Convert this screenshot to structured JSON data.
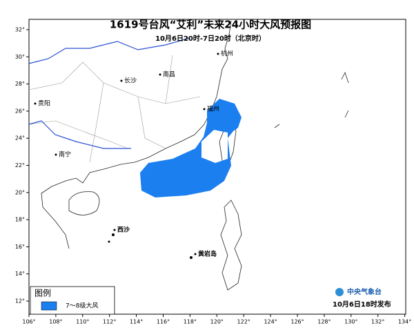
{
  "header": {
    "title": "1619号台风“艾利”未来24小时大风预报图",
    "subtitle": "10月6日20时-7日20时（北京时）"
  },
  "map": {
    "lon_labels": [
      "106°",
      "108°",
      "110°",
      "112°",
      "114°",
      "116°",
      "118°",
      "120°",
      "122°",
      "124°",
      "126°",
      "128°",
      "130°",
      "132°",
      "134°"
    ],
    "lat_labels": [
      "32°",
      "30°",
      "28°",
      "26°",
      "24°",
      "22°",
      "20°",
      "18°",
      "16°",
      "14°",
      "12°"
    ],
    "places": [
      {
        "name": "杭州"
      },
      {
        "name": "南昌"
      },
      {
        "name": "长沙"
      },
      {
        "name": "福州"
      },
      {
        "name": "贵阳"
      },
      {
        "name": "南宁"
      },
      {
        "name": "西沙"
      },
      {
        "name": "黄岩岛"
      }
    ]
  },
  "legend": {
    "title": "图例",
    "items": [
      {
        "label": "7～8级大风",
        "color": "#1c7ff0"
      }
    ]
  },
  "footer": {
    "agency": "中央气象台",
    "issued": "10月6日18时发布"
  }
}
